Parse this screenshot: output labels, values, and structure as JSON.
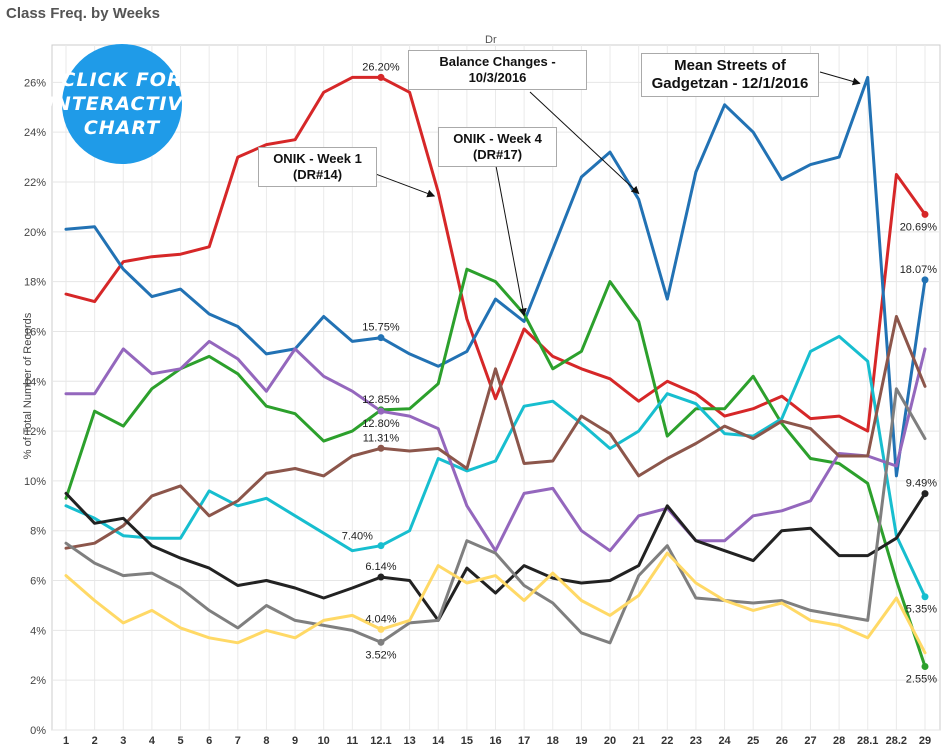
{
  "page": {
    "title": "Class Freq. by Weeks",
    "badge_label": "CLICK FOR INTERACTIVE CHART"
  },
  "annotations": {
    "onik1": "ONIK - Week 1 (DR#14)",
    "onik4": "ONIK - Week 4 (DR#17)",
    "balance": "Balance Changes - 10/3/2016",
    "mean": "Mean Streets of Gadgetzan - 12/1/2016"
  },
  "chart_data": {
    "type": "line",
    "title": "Class Freq. by Weeks",
    "xlabel": "Dr",
    "ylabel": "% of Total Number of Records",
    "ylim": [
      0,
      27.5
    ],
    "yticks": [
      "0%",
      "2%",
      "4%",
      "6%",
      "8%",
      "10%",
      "12%",
      "14%",
      "16%",
      "18%",
      "20%",
      "22%",
      "24%",
      "26%"
    ],
    "categories": [
      "1",
      "2",
      "3",
      "4",
      "5",
      "6",
      "7",
      "8",
      "9",
      "10",
      "11",
      "12.1",
      "13",
      "14",
      "15",
      "16",
      "17",
      "18",
      "19",
      "20",
      "21",
      "22",
      "23",
      "24",
      "25",
      "26",
      "27",
      "28",
      "28.1",
      "28.2",
      "29"
    ],
    "series": [
      {
        "color": "#d62728",
        "values": [
          17.5,
          17.2,
          18.8,
          19.0,
          19.1,
          19.4,
          23.0,
          23.5,
          23.7,
          25.6,
          26.2,
          26.2,
          25.6,
          21.6,
          16.5,
          13.3,
          16.1,
          15.0,
          14.5,
          14.1,
          13.2,
          14.0,
          13.5,
          12.6,
          12.9,
          13.4,
          12.5,
          12.6,
          12.0,
          22.3,
          20.7
        ]
      },
      {
        "color": "#2272b4",
        "values": [
          20.1,
          20.2,
          18.5,
          17.4,
          17.7,
          16.7,
          16.2,
          15.1,
          15.3,
          16.6,
          15.6,
          15.75,
          15.1,
          14.6,
          15.2,
          17.3,
          16.4,
          19.3,
          22.2,
          23.2,
          21.3,
          17.3,
          22.4,
          25.1,
          24.0,
          22.1,
          22.7,
          23.0,
          26.2,
          10.2,
          18.07
        ]
      },
      {
        "color": "#2ca02c",
        "values": [
          9.3,
          12.8,
          12.2,
          13.7,
          14.5,
          15.0,
          14.3,
          13.0,
          12.7,
          11.6,
          12.0,
          12.85,
          12.9,
          13.9,
          18.5,
          18.0,
          16.7,
          14.5,
          15.2,
          18.0,
          16.4,
          11.8,
          12.9,
          12.9,
          14.2,
          12.3,
          10.9,
          10.7,
          9.9,
          6.0,
          2.55
        ]
      },
      {
        "color": "#17becf",
        "values": [
          9.0,
          8.5,
          7.8,
          7.7,
          7.7,
          9.6,
          9.0,
          9.3,
          8.6,
          7.9,
          7.2,
          7.4,
          8.0,
          10.9,
          10.4,
          10.8,
          13.0,
          13.2,
          12.3,
          11.3,
          12.0,
          13.5,
          13.1,
          11.9,
          11.8,
          12.5,
          15.2,
          15.8,
          14.8,
          7.8,
          5.35
        ]
      },
      {
        "color": "#9467bd",
        "values": [
          13.5,
          13.5,
          15.3,
          14.3,
          14.5,
          15.6,
          14.9,
          13.6,
          15.3,
          14.2,
          13.6,
          12.8,
          12.6,
          12.1,
          9.0,
          7.2,
          9.5,
          9.7,
          8.0,
          7.2,
          8.6,
          8.9,
          7.6,
          7.6,
          8.6,
          8.8,
          9.2,
          11.1,
          11.0,
          10.6,
          15.3
        ]
      },
      {
        "color": "#8c564b",
        "values": [
          7.3,
          7.5,
          8.2,
          9.4,
          9.8,
          8.6,
          9.2,
          10.3,
          10.5,
          10.2,
          11.0,
          11.31,
          11.2,
          11.3,
          10.5,
          14.5,
          10.7,
          10.8,
          12.6,
          11.9,
          10.2,
          10.9,
          11.5,
          12.2,
          11.7,
          12.4,
          12.1,
          11.0,
          11.0,
          16.6,
          13.8
        ]
      },
      {
        "color": "#222222",
        "values": [
          9.5,
          8.3,
          8.5,
          7.4,
          6.9,
          6.5,
          5.8,
          6.0,
          5.7,
          5.3,
          5.7,
          6.14,
          6.0,
          4.4,
          6.5,
          5.5,
          6.6,
          6.1,
          5.9,
          6.0,
          6.6,
          9.0,
          7.6,
          7.2,
          6.8,
          8.0,
          8.1,
          7.0,
          7.0,
          7.7,
          9.49
        ]
      },
      {
        "color": "#7f7f7f",
        "values": [
          7.5,
          6.7,
          6.2,
          6.3,
          5.7,
          4.8,
          4.1,
          5.0,
          4.4,
          4.2,
          4.0,
          3.52,
          4.3,
          4.4,
          7.6,
          7.1,
          5.8,
          5.1,
          3.9,
          3.5,
          6.2,
          7.4,
          5.3,
          5.2,
          5.1,
          5.2,
          4.8,
          4.6,
          4.4,
          13.7,
          11.7
        ]
      },
      {
        "color": "#ffd966",
        "values": [
          6.2,
          5.2,
          4.3,
          4.8,
          4.1,
          3.7,
          3.5,
          4.0,
          3.7,
          4.4,
          4.6,
          4.04,
          4.4,
          6.6,
          5.9,
          6.2,
          5.2,
          6.3,
          5.2,
          4.6,
          5.4,
          7.1,
          5.9,
          5.2,
          4.8,
          5.1,
          4.4,
          4.2,
          3.7,
          5.3,
          3.1
        ]
      }
    ],
    "data_labels": [
      {
        "series": 0,
        "index": 11,
        "text": "26.20%",
        "pos": "above"
      },
      {
        "series": 1,
        "index": 11,
        "text": "15.75%",
        "pos": "above"
      },
      {
        "series": 2,
        "index": 11,
        "text": "12.85%",
        "pos": "above"
      },
      {
        "series": 4,
        "index": 11,
        "text": "12.80%",
        "pos": "below"
      },
      {
        "series": 5,
        "index": 11,
        "text": "11.31%",
        "pos": "above"
      },
      {
        "series": 3,
        "index": 11,
        "text": "7.40%",
        "pos": "left"
      },
      {
        "series": 6,
        "index": 11,
        "text": "6.14%",
        "pos": "above"
      },
      {
        "series": 8,
        "index": 11,
        "text": "4.04%",
        "pos": "above"
      },
      {
        "series": 7,
        "index": 11,
        "text": "3.52%",
        "pos": "below"
      },
      {
        "series": 0,
        "index": 30,
        "text": "20.69%",
        "pos": "below"
      },
      {
        "series": 1,
        "index": 30,
        "text": "18.07%",
        "pos": "above"
      },
      {
        "series": 6,
        "index": 30,
        "text": "9.49%",
        "pos": "above"
      },
      {
        "series": 3,
        "index": 30,
        "text": "5.35%",
        "pos": "below"
      },
      {
        "series": 2,
        "index": 30,
        "text": "2.55%",
        "pos": "below"
      }
    ],
    "grid": true
  }
}
